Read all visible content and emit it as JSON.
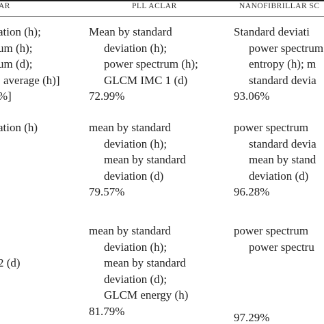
{
  "table": {
    "headers": [
      "AR",
      "PLL ACLAR",
      "NANOFIBRILLAR SC"
    ],
    "rows": [
      {
        "col1": {
          "lines": [
            "ation (h);",
            "um (h);",
            "um (d);",
            "average (h)]"
          ],
          "result": "%]"
        },
        "col2": {
          "lines": [
            "Mean by standard",
            "deviation (h);",
            "power spectrum (h);",
            "GLCM IMC 1 (d)"
          ],
          "result": "72.99%"
        },
        "col3": {
          "lines": [
            "Standard deviati",
            "power spectrum",
            "entropy (h); m",
            "standard devia"
          ],
          "result": "93.06%"
        }
      },
      {
        "col1": {
          "lines": [
            "ation (h)"
          ],
          "result": ""
        },
        "col2": {
          "lines": [
            "mean by standard",
            "deviation (h);",
            "mean by standard",
            "deviation (d)"
          ],
          "result": "79.57%"
        },
        "col3": {
          "lines": [
            "power spectrum",
            "standard devia",
            "mean by stand",
            "deviation (d)"
          ],
          "result": "96.28%"
        }
      },
      {
        "col1": {
          "lines": [
            "2 (d)"
          ],
          "result": ""
        },
        "col2": {
          "lines": [
            "mean by standard",
            "deviation (h);",
            "mean by standard",
            "deviation (d);",
            "GLCM energy (h)"
          ],
          "result": "81.79%"
        },
        "col3": {
          "lines": [
            "power spectrum",
            "power spectru"
          ],
          "result": "97.29%"
        }
      }
    ]
  }
}
